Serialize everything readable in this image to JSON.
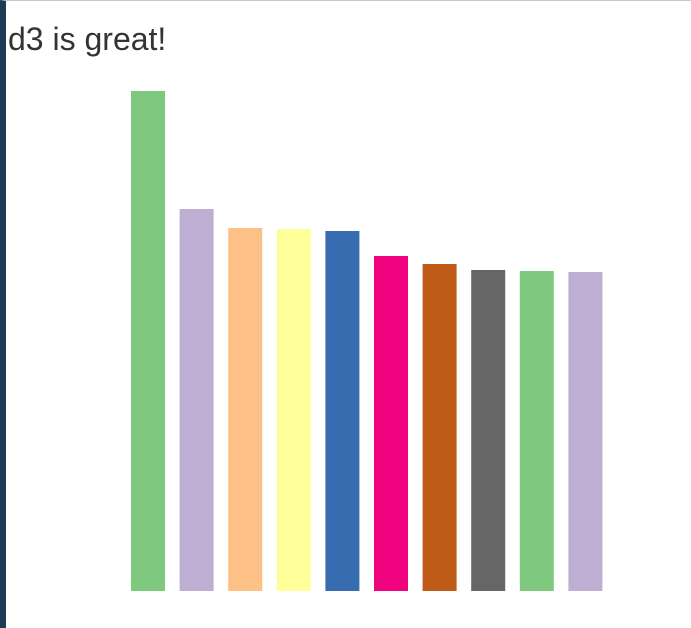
{
  "chart_data": {
    "type": "bar",
    "title": "d3 is great!",
    "values": [
      500,
      382,
      363,
      362,
      360,
      335,
      327,
      321,
      320,
      319
    ],
    "colors": [
      "#7fc97f",
      "#beaed4",
      "#fdc086",
      "#ffff99",
      "#386cb0",
      "#f0027f",
      "#bf5b17",
      "#666666",
      "#7fc97f",
      "#beaed4"
    ]
  }
}
